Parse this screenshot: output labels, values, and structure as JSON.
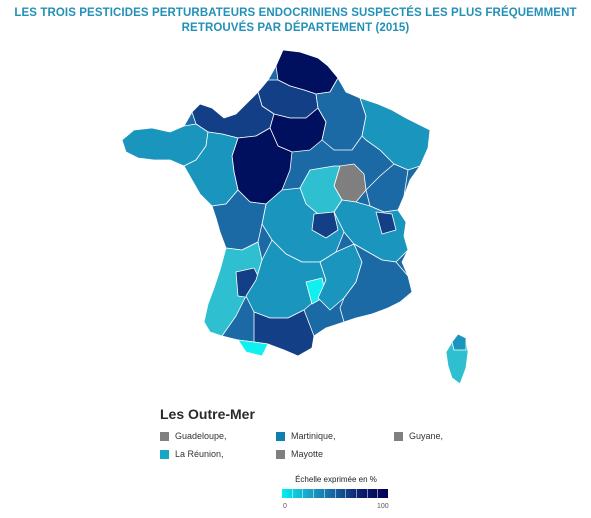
{
  "title_line1": "LES TROIS PESTICIDES PERTURBATEURS ENDOCRINIENS SUSPECTÉS LES PLUS FRÉQUEMMENT",
  "title_line2": "RETROUVÉS PAR DÉPARTEMENT (2015)",
  "outre_mer": {
    "title": "Les Outre-Mer",
    "items": [
      {
        "label": "Guadeloupe,",
        "color": "#808080"
      },
      {
        "label": "Martinique,",
        "color": "#0e7fae"
      },
      {
        "label": "Guyane,",
        "color": "#808080"
      },
      {
        "label": "La Réunion,",
        "color": "#16a7c4"
      },
      {
        "label": "Mayotte",
        "color": "#808080"
      }
    ]
  },
  "scale": {
    "title": "Échelle exprimée en %",
    "min_label": "0",
    "max_label": "100",
    "colors": [
      "#00f0f0",
      "#1aa4c8",
      "#16609d",
      "#0a1a6c",
      "#000055"
    ]
  },
  "map_colors": {
    "darkest": "#00105e",
    "dark": "#123f86",
    "mid": "#1b6aa6",
    "teal": "#1a95bd",
    "cyan": "#2ec0d0",
    "bright": "#10f0f0",
    "nodata": "#7f7f7f",
    "border": "#ffffff"
  }
}
